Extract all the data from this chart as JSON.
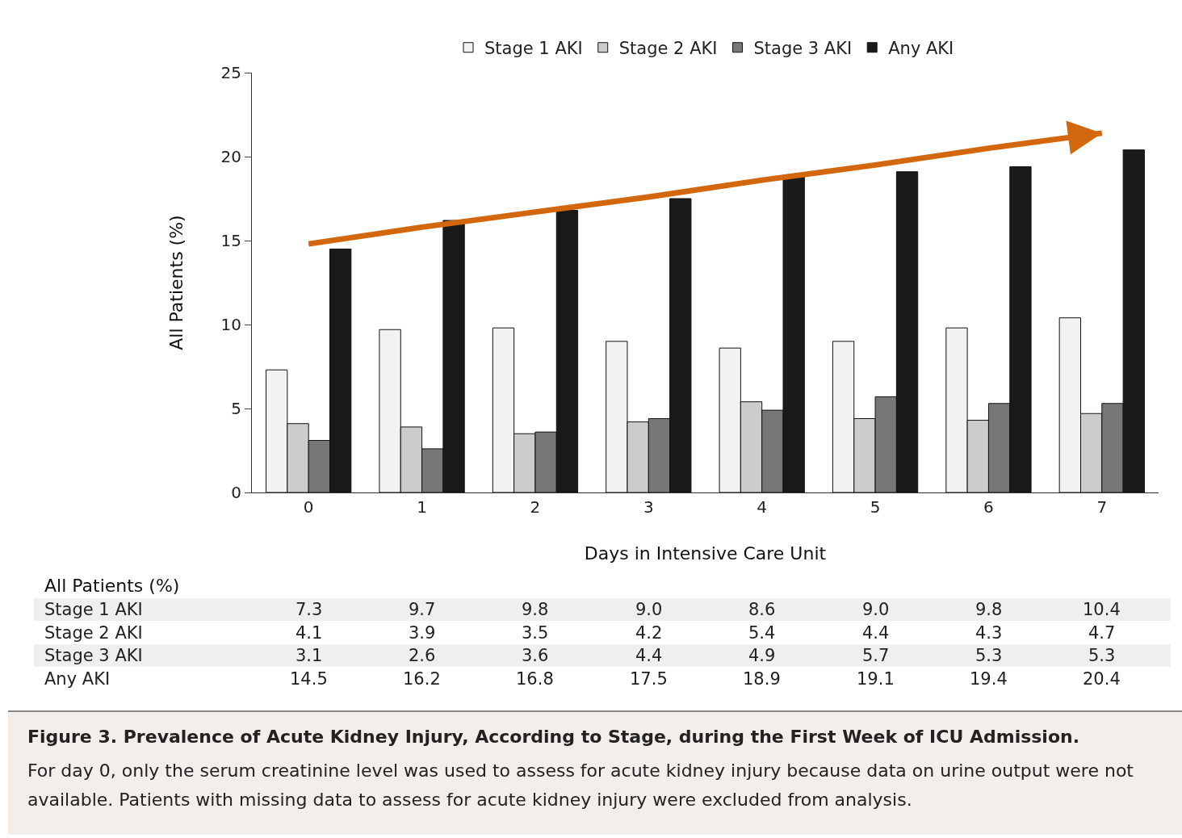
{
  "chart_data": {
    "type": "bar",
    "title": "Figure 3. Prevalence of Acute Kidney Injury, According to Stage, during the First Week of ICU Admission.",
    "xlabel": "Days in Intensive Care Unit",
    "ylabel": "All Patients (%)",
    "categories": [
      "0",
      "1",
      "2",
      "3",
      "4",
      "5",
      "6",
      "7"
    ],
    "series": [
      {
        "name": "Stage 1 AKI",
        "color": "#f2f2f2",
        "values": [
          7.3,
          9.7,
          9.8,
          9.0,
          8.6,
          9.0,
          9.8,
          10.4
        ],
        "value_labels": [
          "7.3",
          "9.7",
          "9.8",
          "9.0",
          "8.6",
          "9.0",
          "9.8",
          "10.4"
        ]
      },
      {
        "name": "Stage 2 AKI",
        "color": "#cccccc",
        "values": [
          4.1,
          3.9,
          3.5,
          4.2,
          5.4,
          4.4,
          4.3,
          4.7
        ],
        "value_labels": [
          "4.1",
          "3.9",
          "3.5",
          "4.2",
          "5.4",
          "4.4",
          "4.3",
          "4.7"
        ]
      },
      {
        "name": "Stage 3 AKI",
        "color": "#777777",
        "values": [
          3.1,
          2.6,
          3.6,
          4.4,
          4.9,
          5.7,
          5.3,
          5.3
        ],
        "value_labels": [
          "3.1",
          "2.6",
          "3.6",
          "4.4",
          "4.9",
          "5.7",
          "5.3",
          "5.3"
        ]
      },
      {
        "name": "Any AKI",
        "color": "#1a1a1a",
        "values": [
          14.5,
          16.2,
          16.8,
          17.5,
          18.9,
          19.1,
          19.4,
          20.4
        ],
        "value_labels": [
          "14.5",
          "16.2",
          "16.8",
          "17.5",
          "18.9",
          "19.1",
          "19.4",
          "20.4"
        ]
      },
      {
        "type": "line",
        "color": "#d2670e",
        "values": [
          14.8,
          15.8,
          16.7,
          17.6,
          18.6,
          19.5,
          20.5,
          21.4
        ]
      }
    ],
    "ylim": [
      0,
      25
    ],
    "yticks": [
      0,
      5,
      10,
      15,
      20,
      25
    ],
    "grid": false,
    "legend": "top",
    "marker": "none",
    "annotations": [
      "All Patients (%)",
      "For day 0, only the serum creatinine level was used to assess for acute kidney injury because data on urine output were not available. Patients with missing data to assess for acute kidney injury were excluded from analysis."
    ]
  }
}
